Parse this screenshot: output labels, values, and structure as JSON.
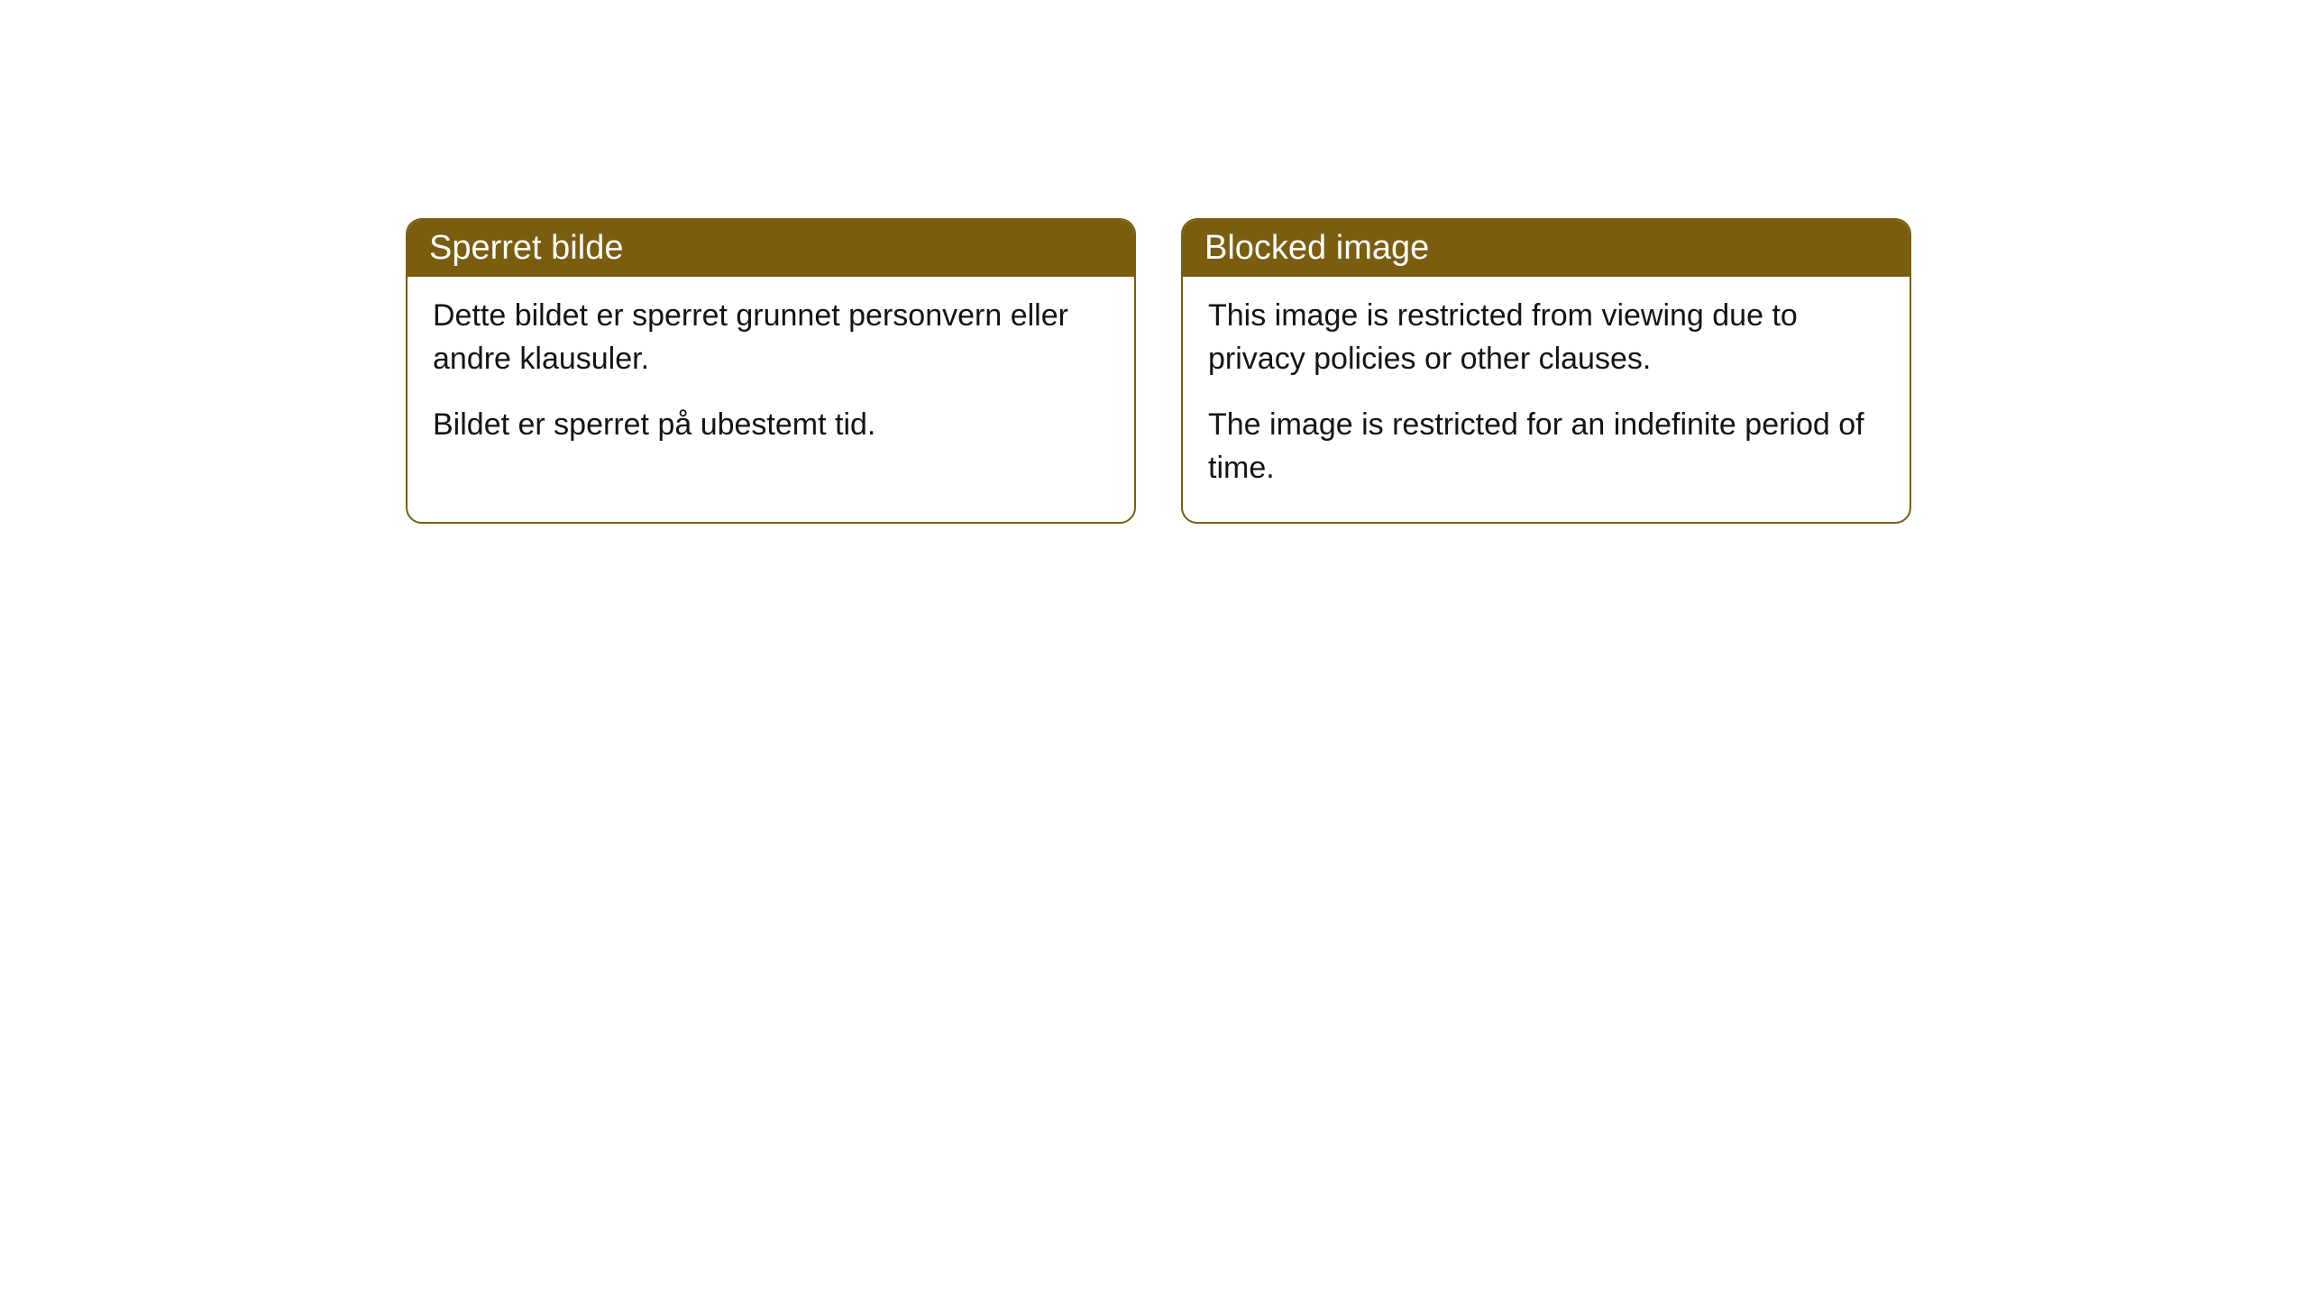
{
  "cards": [
    {
      "title": "Sperret bilde",
      "paragraph1": "Dette bildet er sperret grunnet personvern eller andre klausuler.",
      "paragraph2": "Bildet er sperret på ubestemt tid."
    },
    {
      "title": "Blocked image",
      "paragraph1": "This image is restricted from viewing due to privacy policies or other clauses.",
      "paragraph2": "The image is restricted for an indefinite period of time."
    }
  ],
  "styles": {
    "header_background": "#7a5d0f",
    "header_text_color": "#ffffff",
    "border_color": "#7a5d0f",
    "body_background": "#ffffff",
    "body_text_color": "#141414",
    "page_background": "#ffffff",
    "border_radius": 18,
    "header_fontsize": 38,
    "body_fontsize": 34
  }
}
